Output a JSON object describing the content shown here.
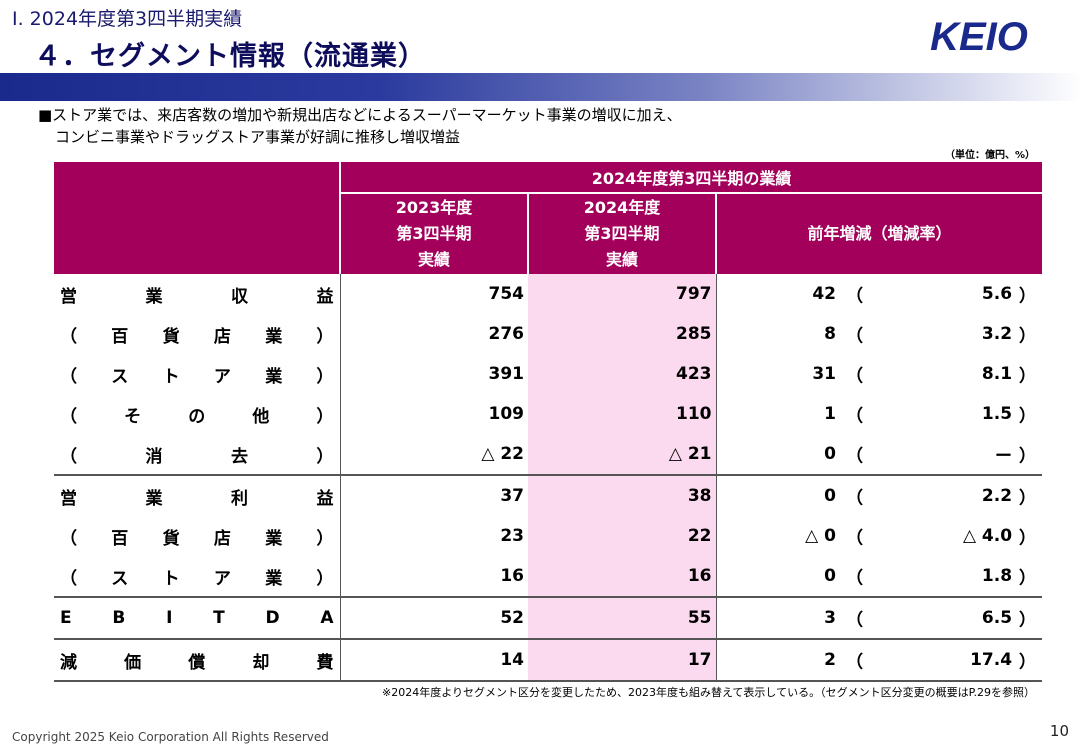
{
  "header": {
    "section": "Ⅰ. 2024年度第3四半期実績",
    "title": "４．セグメント情報（流通業）",
    "logo_text": "KEIO",
    "brand_color": "#1a2a8c",
    "accent_color": "#a3005c"
  },
  "summary": {
    "line1": "■ストア業では、来店客数の増加や新規出店などによるスーパーマーケット事業の増収に加え、",
    "line2": "コンビニ事業やドラッグストア事業が好調に推移し増収増益"
  },
  "unit": "（単位：億円、%）",
  "table": {
    "group_header": "2024年度第3四半期の業績",
    "col_2023": [
      "2023年度",
      "第3四半期",
      "実績"
    ],
    "col_2024": [
      "2024年度",
      "第3四半期",
      "実績"
    ],
    "col_delta": "前年増減（増減率）",
    "rows": [
      {
        "label": [
          "営",
          "業",
          "収",
          "益"
        ],
        "v2023": "754",
        "v2024": "797",
        "delta": "42",
        "open": "（",
        "rate": "5.6",
        "close": "）"
      },
      {
        "label": [
          "（",
          "百",
          "貨",
          "店",
          "業",
          "）"
        ],
        "v2023": "276",
        "v2024": "285",
        "delta": "8",
        "open": "（",
        "rate": "3.2",
        "close": "）"
      },
      {
        "label": [
          "（",
          "ス",
          "ト",
          "ア",
          "業",
          "）"
        ],
        "v2023": "391",
        "v2024": "423",
        "delta": "31",
        "open": "（",
        "rate": "8.1",
        "close": "）"
      },
      {
        "label": [
          "（",
          "そ",
          "の",
          "他",
          "）"
        ],
        "v2023": "109",
        "v2024": "110",
        "delta": "1",
        "open": "（",
        "rate": "1.5",
        "close": "）"
      },
      {
        "label": [
          "（",
          "消",
          "去",
          "）"
        ],
        "v2023": "△ 22",
        "v2024": "△ 21",
        "delta": "0",
        "open": "（",
        "rate": "ー",
        "close": "）"
      },
      {
        "label": [
          "営",
          "業",
          "利",
          "益"
        ],
        "v2023": "37",
        "v2024": "38",
        "delta": "0",
        "open": "（",
        "rate": "2.2",
        "close": "）"
      },
      {
        "label": [
          "（",
          "百",
          "貨",
          "店",
          "業",
          "）"
        ],
        "v2023": "23",
        "v2024": "22",
        "delta": "△ 0",
        "open": "（",
        "rate": "△ 4.0",
        "close": "）"
      },
      {
        "label": [
          "（",
          "ス",
          "ト",
          "ア",
          "業",
          "）"
        ],
        "v2023": "16",
        "v2024": "16",
        "delta": "0",
        "open": "（",
        "rate": "1.8",
        "close": "）"
      },
      {
        "label": [
          "E",
          "B",
          "I",
          "T",
          "D",
          "A"
        ],
        "v2023": "52",
        "v2024": "55",
        "delta": "3",
        "open": "（",
        "rate": "6.5",
        "close": "）"
      },
      {
        "label": [
          "減",
          "価",
          "償",
          "却",
          "費"
        ],
        "v2023": "14",
        "v2024": "17",
        "delta": "2",
        "open": "（",
        "rate": "17.4",
        "close": "）"
      }
    ]
  },
  "footnote": "※2024年度よりセグメント区分を変更したため、2023年度も組み替えて表示している。（セグメント区分変更の概要はP.29を参照）",
  "footer": {
    "copyright": "Copyright 2025 Keio Corporation All Rights Reserved",
    "page": "10"
  }
}
